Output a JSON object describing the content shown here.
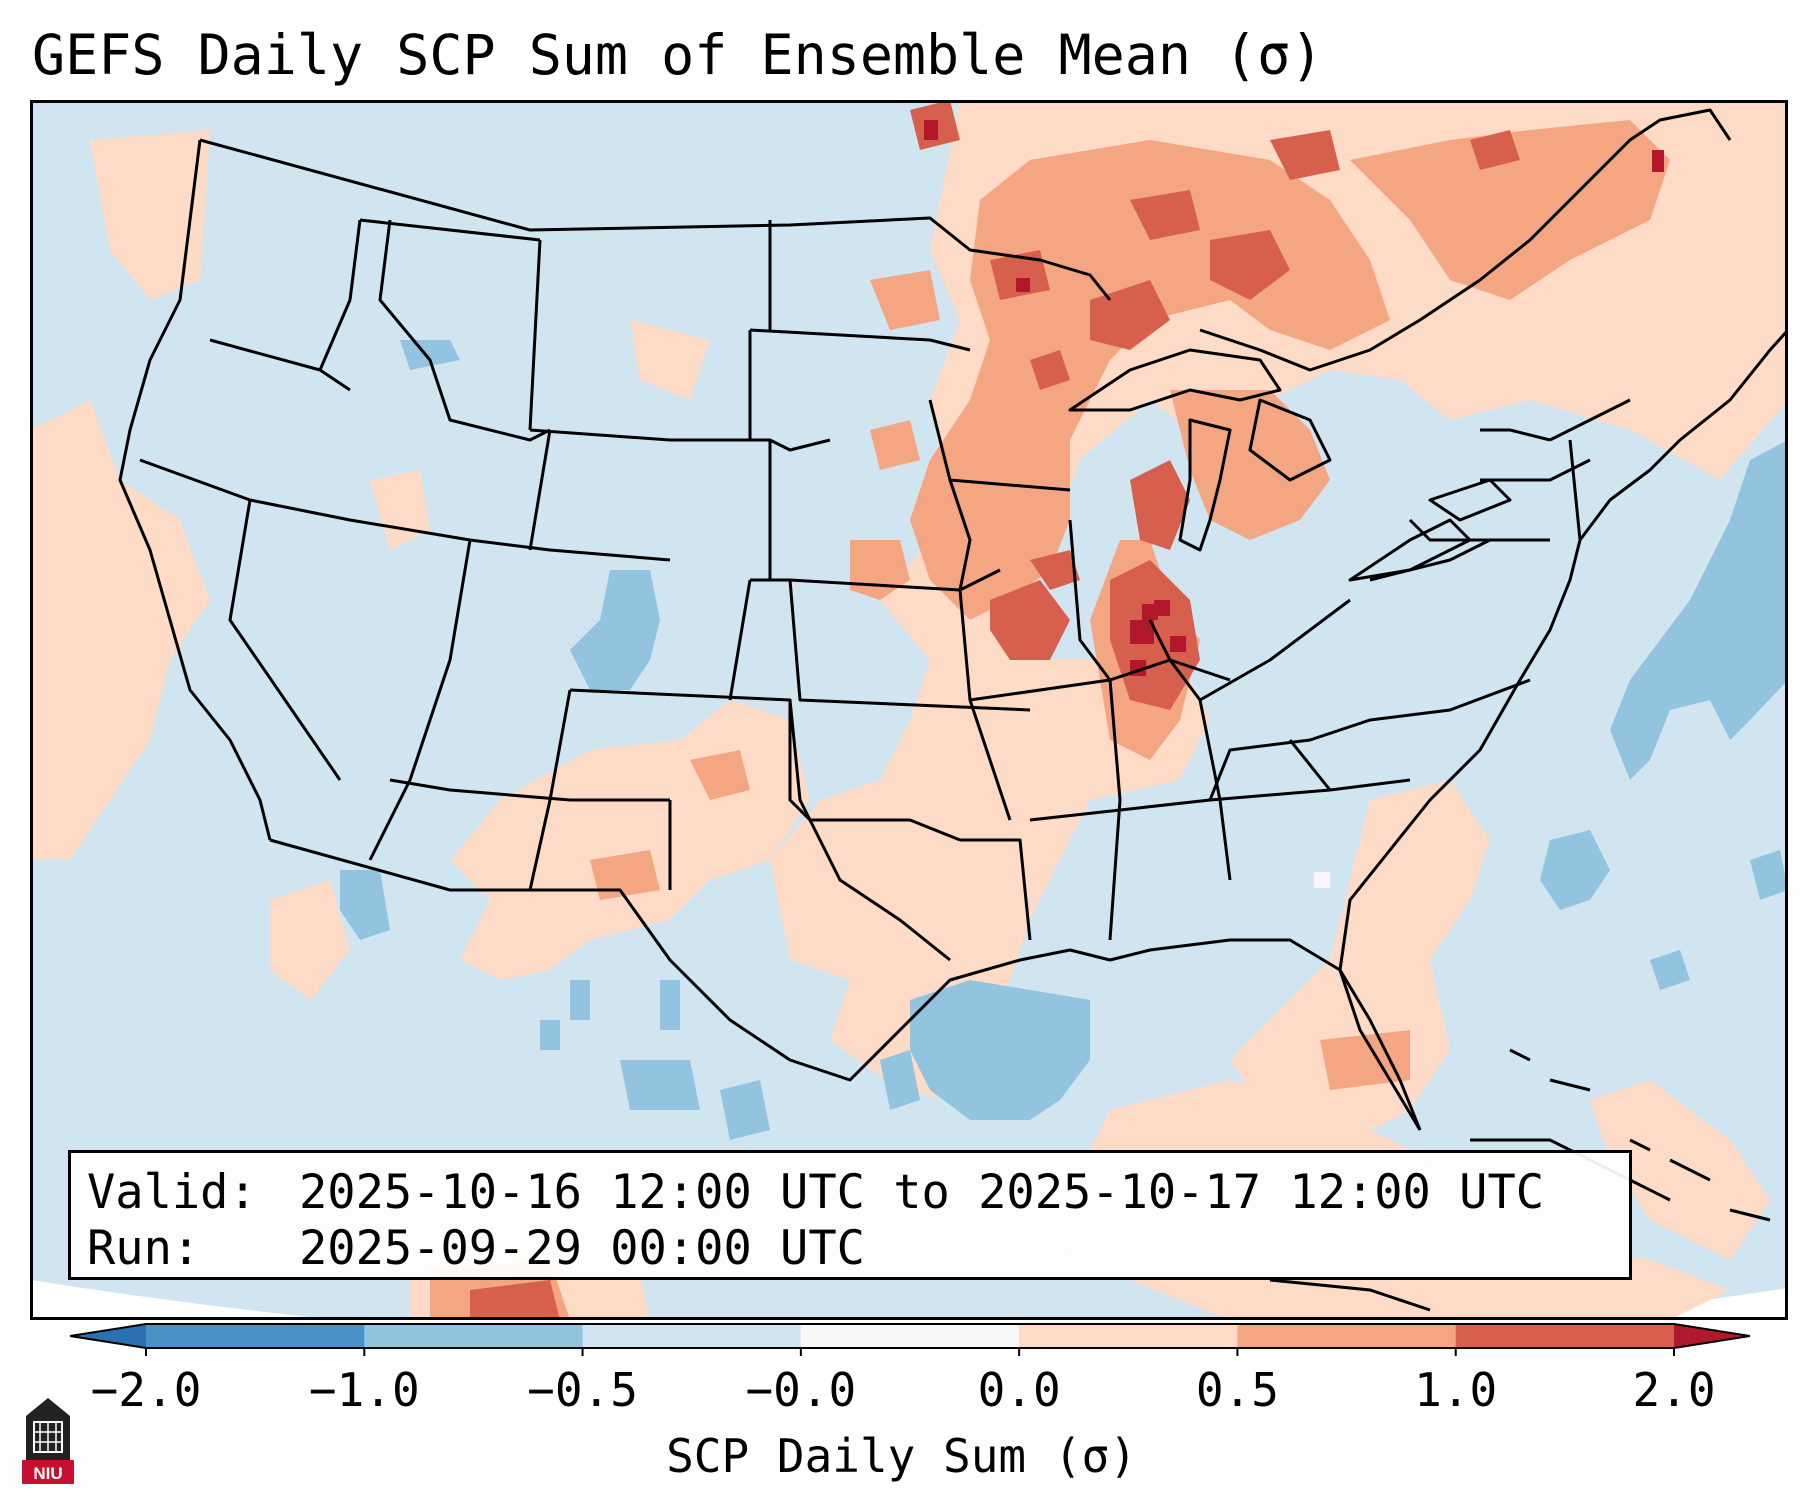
{
  "title": "GEFS Daily SCP Sum of Ensemble Mean (σ)",
  "info_box": {
    "valid_label": "Valid:",
    "valid_value": "2025-10-16 12:00 UTC to 2025-10-17 12:00 UTC",
    "run_label": "Run:",
    "run_value": "2025-09-29 00:00 UTC"
  },
  "colorbar": {
    "label": "SCP Daily Sum (σ)",
    "ticks": [
      "−2.0",
      "−1.0",
      "−0.5",
      "−0.0",
      "0.0",
      "0.5",
      "1.0",
      "2.0"
    ],
    "bin_colors": [
      "#4a91c6",
      "#92c4df",
      "#d1e5f0",
      "#f7f7f7",
      "#fddbc7",
      "#f4a582",
      "#d6604d"
    ],
    "under_color": "#2b70b0",
    "over_color": "#b2182b"
  },
  "map": {
    "background_color": "#d1e5f0",
    "outside_color": "#ffffff",
    "region": "Contiguous United States",
    "anomaly_classes": {
      "light_positive": "#fddbc7",
      "moderate_positive": "#f4a582",
      "strong_positive": "#d6604d",
      "extreme_positive": "#b2182b",
      "moderate_negative": "#92c4df",
      "near_zero": "#f7f7f7"
    }
  },
  "logo": {
    "text": "NIU",
    "red": "#c8102e",
    "dark": "#222222"
  }
}
